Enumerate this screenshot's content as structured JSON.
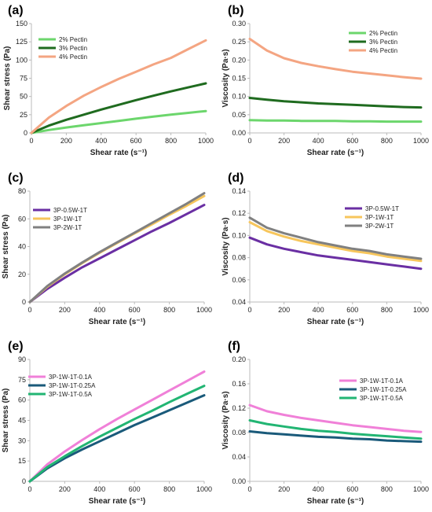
{
  "chart_data": [
    {
      "panel": "(a)",
      "type": "line",
      "xlabel": "Shear rate (s⁻¹)",
      "ylabel": "Shear stress (Pa)",
      "xlim": [
        0,
        1000
      ],
      "ylim": [
        0,
        150
      ],
      "xticks": [
        0,
        200,
        400,
        600,
        800,
        1000
      ],
      "yticks": [
        0,
        25,
        50,
        75,
        100,
        125,
        150
      ],
      "ydecimals": 0,
      "legend": "top-left",
      "series": [
        {
          "name": "2% Pectin",
          "color": "#6cd66c",
          "x": [
            0,
            100,
            200,
            300,
            400,
            500,
            600,
            700,
            800,
            900,
            1000
          ],
          "y": [
            0,
            4,
            7.5,
            10.5,
            13.5,
            16.5,
            19.5,
            22.5,
            25,
            27.5,
            30
          ]
        },
        {
          "name": "3% Pectin",
          "color": "#1f6b1f",
          "x": [
            0,
            100,
            200,
            300,
            400,
            500,
            600,
            700,
            800,
            900,
            1000
          ],
          "y": [
            0,
            10,
            18,
            25,
            32,
            38.5,
            45,
            51,
            57,
            62.5,
            68
          ]
        },
        {
          "name": "4% Pectin",
          "color": "#f4a582",
          "x": [
            0,
            100,
            200,
            300,
            400,
            500,
            600,
            700,
            800,
            900,
            1000
          ],
          "y": [
            0,
            21,
            37,
            51,
            63,
            74,
            84,
            94,
            103,
            115,
            127
          ]
        }
      ]
    },
    {
      "panel": "(b)",
      "type": "line",
      "xlabel": "Shear rate (s⁻¹)",
      "ylabel": "Viscosity (Pa·s)",
      "xlim": [
        0,
        1000
      ],
      "ylim": [
        0,
        0.3
      ],
      "xticks": [
        0,
        200,
        400,
        600,
        800,
        1000
      ],
      "yticks": [
        0,
        0.05,
        0.1,
        0.15,
        0.2,
        0.25,
        0.3
      ],
      "ydecimals": 2,
      "legend": "top-right",
      "series": [
        {
          "name": "2% Pectin",
          "color": "#6cd66c",
          "x": [
            0,
            100,
            200,
            300,
            400,
            500,
            600,
            700,
            800,
            900,
            1000
          ],
          "y": [
            0.035,
            0.034,
            0.034,
            0.033,
            0.033,
            0.033,
            0.032,
            0.032,
            0.031,
            0.031,
            0.031
          ]
        },
        {
          "name": "3% Pectin",
          "color": "#1f6b1f",
          "x": [
            0,
            100,
            200,
            300,
            400,
            500,
            600,
            700,
            800,
            900,
            1000
          ],
          "y": [
            0.096,
            0.091,
            0.087,
            0.084,
            0.081,
            0.079,
            0.077,
            0.075,
            0.073,
            0.071,
            0.07
          ]
        },
        {
          "name": "4% Pectin",
          "color": "#f4a582",
          "x": [
            0,
            100,
            200,
            300,
            400,
            500,
            600,
            700,
            800,
            900,
            1000
          ],
          "y": [
            0.258,
            0.226,
            0.205,
            0.192,
            0.183,
            0.175,
            0.168,
            0.163,
            0.158,
            0.153,
            0.149
          ]
        }
      ]
    },
    {
      "panel": "(c)",
      "type": "line",
      "xlabel": "Shear rate (s⁻¹)",
      "ylabel": "Shear stress (Pa)",
      "xlim": [
        0,
        1000
      ],
      "ylim": [
        0,
        80
      ],
      "xticks": [
        0,
        200,
        400,
        600,
        800,
        1000
      ],
      "yticks": [
        0,
        20,
        40,
        60,
        80
      ],
      "ydecimals": 0,
      "legend": "top-left",
      "series": [
        {
          "name": "3P-0.5W-1T",
          "color": "#6a2fa3",
          "x": [
            0,
            100,
            200,
            300,
            400,
            500,
            600,
            700,
            800,
            900,
            1000
          ],
          "y": [
            0,
            9.5,
            17.5,
            25,
            31.5,
            38,
            44.5,
            51,
            57,
            63.5,
            70
          ]
        },
        {
          "name": "3P-1W-1T",
          "color": "#f7c65c",
          "x": [
            0,
            100,
            200,
            300,
            400,
            500,
            600,
            700,
            800,
            900,
            1000
          ],
          "y": [
            0,
            11,
            20,
            28,
            35.5,
            42.5,
            49.5,
            56,
            63,
            69.5,
            76.5
          ]
        },
        {
          "name": "3P-2W-1T",
          "color": "#808080",
          "x": [
            0,
            100,
            200,
            300,
            400,
            500,
            600,
            700,
            800,
            900,
            1000
          ],
          "y": [
            0,
            11.5,
            20.5,
            28.5,
            36,
            43,
            50,
            57,
            64,
            71,
            78.5
          ]
        }
      ]
    },
    {
      "panel": "(d)",
      "type": "line",
      "xlabel": "Shear rate (s⁻¹)",
      "ylabel": "Viscosity (Pa·s)",
      "xlim": [
        0,
        1000
      ],
      "ylim": [
        0.04,
        0.14
      ],
      "xticks": [
        0,
        200,
        400,
        600,
        800,
        1000
      ],
      "yticks": [
        0.04,
        0.06,
        0.08,
        0.1,
        0.12,
        0.14
      ],
      "ydecimals": 2,
      "legend": "top-right",
      "series": [
        {
          "name": "3P-0.5W-1T",
          "color": "#6a2fa3",
          "x": [
            0,
            100,
            200,
            300,
            400,
            500,
            600,
            700,
            800,
            900,
            1000
          ],
          "y": [
            0.098,
            0.092,
            0.088,
            0.085,
            0.082,
            0.08,
            0.078,
            0.076,
            0.074,
            0.072,
            0.07
          ]
        },
        {
          "name": "3P-1W-1T",
          "color": "#f7c65c",
          "x": [
            0,
            100,
            200,
            300,
            400,
            500,
            600,
            700,
            800,
            900,
            1000
          ],
          "y": [
            0.112,
            0.104,
            0.099,
            0.095,
            0.092,
            0.089,
            0.086,
            0.084,
            0.081,
            0.079,
            0.077
          ]
        },
        {
          "name": "3P-2W-1T",
          "color": "#808080",
          "x": [
            0,
            100,
            200,
            300,
            400,
            500,
            600,
            700,
            800,
            900,
            1000
          ],
          "y": [
            0.116,
            0.107,
            0.102,
            0.098,
            0.094,
            0.091,
            0.088,
            0.086,
            0.083,
            0.081,
            0.079
          ]
        }
      ]
    },
    {
      "panel": "(e)",
      "type": "line",
      "xlabel": "Shear rate (s⁻¹)",
      "ylabel": "Shear stress (Pa)",
      "xlim": [
        0,
        1000
      ],
      "ylim": [
        0,
        90
      ],
      "xticks": [
        0,
        200,
        400,
        600,
        800,
        1000
      ],
      "yticks": [
        0,
        15,
        30,
        45,
        60,
        75,
        90
      ],
      "ydecimals": 0,
      "legend": "top-left",
      "series": [
        {
          "name": "3P-1W-1T-0.1A",
          "color": "#f080d8",
          "x": [
            0,
            100,
            200,
            300,
            400,
            500,
            600,
            700,
            800,
            900,
            1000
          ],
          "y": [
            0,
            12.5,
            22,
            30.5,
            38.5,
            46,
            53,
            60,
            67,
            74,
            81
          ]
        },
        {
          "name": "3P-1W-1T-0.25A",
          "color": "#1a5a7a",
          "x": [
            0,
            100,
            200,
            300,
            400,
            500,
            600,
            700,
            800,
            900,
            1000
          ],
          "y": [
            0,
            9.5,
            17,
            23.5,
            29.5,
            35.5,
            41.5,
            47,
            52.5,
            58,
            63.5
          ]
        },
        {
          "name": "3P-1W-1T-0.5A",
          "color": "#22b573",
          "x": [
            0,
            100,
            200,
            300,
            400,
            500,
            600,
            700,
            800,
            900,
            1000
          ],
          "y": [
            0,
            10.5,
            18.5,
            26,
            33,
            39.5,
            46,
            52,
            58.5,
            64.5,
            70.5
          ]
        }
      ]
    },
    {
      "panel": "(f)",
      "type": "line",
      "xlabel": "Shear rate (s⁻¹)",
      "ylabel": "Viscosity (Pa·s)",
      "xlim": [
        0,
        1000
      ],
      "ylim": [
        0,
        0.2
      ],
      "xticks": [
        0,
        200,
        400,
        600,
        800,
        1000
      ],
      "yticks": [
        0,
        0.04,
        0.08,
        0.12,
        0.16,
        0.2
      ],
      "ydecimals": 2,
      "legend": "top-right",
      "series": [
        {
          "name": "3P-1W-1T-0.1A",
          "color": "#f080d8",
          "x": [
            0,
            100,
            200,
            300,
            400,
            500,
            600,
            700,
            800,
            900,
            1000
          ],
          "y": [
            0.125,
            0.115,
            0.109,
            0.104,
            0.1,
            0.096,
            0.092,
            0.089,
            0.086,
            0.083,
            0.081
          ]
        },
        {
          "name": "3P-1W-1T-0.25A",
          "color": "#1a5a7a",
          "x": [
            0,
            100,
            200,
            300,
            400,
            500,
            600,
            700,
            800,
            900,
            1000
          ],
          "y": [
            0.082,
            0.079,
            0.077,
            0.075,
            0.073,
            0.072,
            0.07,
            0.069,
            0.067,
            0.066,
            0.065
          ]
        },
        {
          "name": "3P-1W-1T-0.5A",
          "color": "#22b573",
          "x": [
            0,
            100,
            200,
            300,
            400,
            500,
            600,
            700,
            800,
            900,
            1000
          ],
          "y": [
            0.1,
            0.094,
            0.09,
            0.086,
            0.083,
            0.081,
            0.078,
            0.076,
            0.074,
            0.072,
            0.07
          ]
        }
      ]
    }
  ]
}
